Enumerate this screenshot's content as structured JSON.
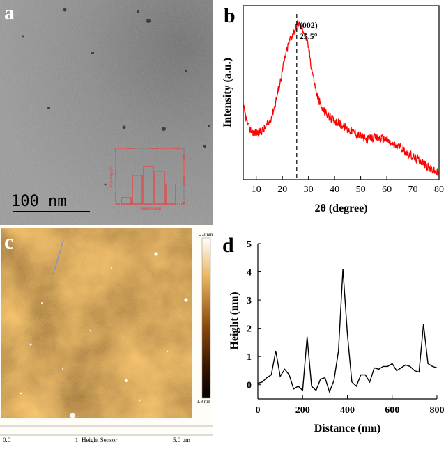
{
  "panels": {
    "a": {
      "letter": "a",
      "scale_bar": "100 nm",
      "inset": {
        "ylabel": "Percentage (%)",
        "xlabel": "Diameter (nm)",
        "bar_values": [
          0.12,
          0.55,
          0.72,
          0.63,
          0.38
        ]
      }
    },
    "c": {
      "letter": "c",
      "colorbar_top": "2.3 nm",
      "colorbar_bottom": "-1.8 nm",
      "footer_left": "0.0",
      "footer_center": "1: Height Sensor",
      "footer_right": "5.0 um"
    }
  },
  "chart_data": [
    {
      "panel": "b",
      "type": "line",
      "xlabel": "2θ (degree)",
      "ylabel": "Intensity (a.u.)",
      "xlim": [
        5,
        80
      ],
      "xticks": [
        10,
        20,
        30,
        40,
        50,
        60,
        70,
        80
      ],
      "annotation": {
        "line1": "(002)",
        "line2": "25.5°",
        "x": 25.5
      },
      "line_color": "#ff0000",
      "x": [
        5,
        7,
        9,
        11,
        13,
        15,
        17,
        19,
        21,
        22,
        23,
        24,
        25,
        26,
        27,
        28,
        29,
        30,
        31,
        33,
        35,
        38,
        40,
        43,
        45,
        48,
        50,
        52,
        55,
        57,
        60,
        62,
        65,
        68,
        70,
        73,
        75,
        78,
        80
      ],
      "y": [
        0.42,
        0.3,
        0.27,
        0.27,
        0.29,
        0.33,
        0.42,
        0.55,
        0.7,
        0.76,
        0.81,
        0.84,
        0.87,
        0.9,
        0.88,
        0.86,
        0.82,
        0.76,
        0.66,
        0.5,
        0.41,
        0.36,
        0.34,
        0.31,
        0.29,
        0.27,
        0.25,
        0.23,
        0.24,
        0.24,
        0.23,
        0.2,
        0.19,
        0.15,
        0.13,
        0.11,
        0.08,
        0.05,
        0.03
      ]
    },
    {
      "panel": "d",
      "type": "line",
      "xlabel": "Distance (nm)",
      "ylabel": "Height (nm)",
      "xlim": [
        0,
        800
      ],
      "ylim": [
        -0.5,
        5
      ],
      "xticks": [
        0,
        200,
        400,
        600,
        800
      ],
      "yticks": [
        0,
        1,
        2,
        3,
        4,
        5
      ],
      "line_color": "#000000",
      "x": [
        0,
        20,
        40,
        60,
        80,
        100,
        120,
        140,
        160,
        180,
        200,
        220,
        240,
        260,
        280,
        300,
        320,
        340,
        360,
        380,
        400,
        420,
        440,
        460,
        480,
        500,
        520,
        540,
        560,
        580,
        600,
        620,
        640,
        660,
        680,
        700,
        720,
        740,
        760,
        780,
        800
      ],
      "y": [
        0.05,
        0.1,
        0.25,
        0.35,
        1.2,
        0.3,
        0.55,
        0.35,
        -0.15,
        -0.05,
        -0.2,
        1.7,
        -0.05,
        -0.2,
        0.2,
        0.25,
        -0.25,
        0.15,
        1.2,
        4.1,
        1.8,
        0.1,
        -0.05,
        0.35,
        0.35,
        0.1,
        0.6,
        0.55,
        0.65,
        0.65,
        0.75,
        0.5,
        0.6,
        0.7,
        0.65,
        0.5,
        0.45,
        2.15,
        0.75,
        0.65,
        0.6
      ]
    }
  ],
  "letters": {
    "b": "b",
    "d": "d"
  }
}
